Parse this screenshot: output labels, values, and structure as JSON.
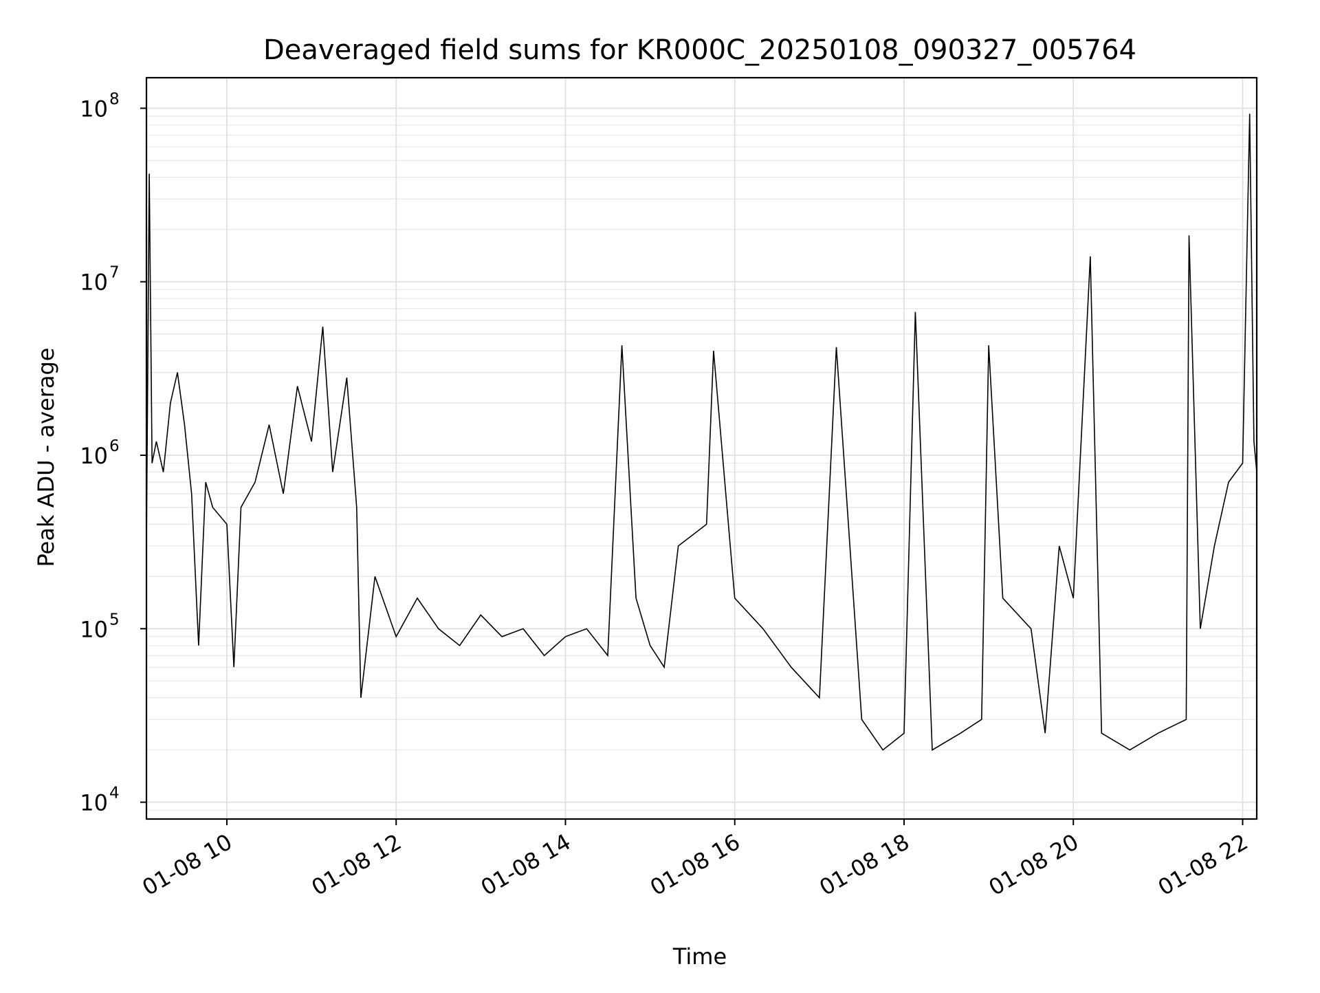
{
  "chart_data": {
    "type": "line",
    "title": "Deaveraged field sums for KR000C_20250108_090327_005764",
    "xlabel": "Time",
    "ylabel": "Peak ADU - average",
    "yscale": "log",
    "ylim": [
      8000,
      150000000
    ],
    "xlim": [
      "2025-01-08 09:03",
      "2025-01-08 22:10"
    ],
    "grid": true,
    "line_color": "#000000",
    "x_ticks": [
      {
        "value": "2025-01-08 10:00",
        "label": "01-08 10"
      },
      {
        "value": "2025-01-08 12:00",
        "label": "01-08 12"
      },
      {
        "value": "2025-01-08 14:00",
        "label": "01-08 14"
      },
      {
        "value": "2025-01-08 16:00",
        "label": "01-08 16"
      },
      {
        "value": "2025-01-08 18:00",
        "label": "01-08 18"
      },
      {
        "value": "2025-01-08 20:00",
        "label": "01-08 20"
      },
      {
        "value": "2025-01-08 22:00",
        "label": "01-08 22"
      }
    ],
    "y_ticks": [
      {
        "value": 10000,
        "base": "10",
        "exp": "4"
      },
      {
        "value": 100000,
        "base": "10",
        "exp": "5"
      },
      {
        "value": 1000000,
        "base": "10",
        "exp": "6"
      },
      {
        "value": 10000000,
        "base": "10",
        "exp": "7"
      },
      {
        "value": 100000000,
        "base": "10",
        "exp": "8"
      }
    ],
    "series": [
      {
        "points": [
          [
            "2025-01-08 09:03",
            300000
          ],
          [
            "2025-01-08 09:05",
            42000000
          ],
          [
            "2025-01-08 09:07",
            900000
          ],
          [
            "2025-01-08 09:10",
            1200000
          ],
          [
            "2025-01-08 09:15",
            800000
          ],
          [
            "2025-01-08 09:20",
            2000000
          ],
          [
            "2025-01-08 09:25",
            3000000
          ],
          [
            "2025-01-08 09:30",
            1500000
          ],
          [
            "2025-01-08 09:35",
            600000
          ],
          [
            "2025-01-08 09:40",
            80000
          ],
          [
            "2025-01-08 09:45",
            700000
          ],
          [
            "2025-01-08 09:50",
            500000
          ],
          [
            "2025-01-08 10:00",
            400000
          ],
          [
            "2025-01-08 10:05",
            60000
          ],
          [
            "2025-01-08 10:10",
            500000
          ],
          [
            "2025-01-08 10:20",
            700000
          ],
          [
            "2025-01-08 10:30",
            1500000
          ],
          [
            "2025-01-08 10:40",
            600000
          ],
          [
            "2025-01-08 10:50",
            2500000
          ],
          [
            "2025-01-08 11:00",
            1200000
          ],
          [
            "2025-01-08 11:08",
            5500000
          ],
          [
            "2025-01-08 11:15",
            800000
          ],
          [
            "2025-01-08 11:25",
            2800000
          ],
          [
            "2025-01-08 11:32",
            500000
          ],
          [
            "2025-01-08 11:35",
            40000
          ],
          [
            "2025-01-08 11:45",
            200000
          ],
          [
            "2025-01-08 12:00",
            90000
          ],
          [
            "2025-01-08 12:15",
            150000
          ],
          [
            "2025-01-08 12:30",
            100000
          ],
          [
            "2025-01-08 12:45",
            80000
          ],
          [
            "2025-01-08 13:00",
            120000
          ],
          [
            "2025-01-08 13:15",
            90000
          ],
          [
            "2025-01-08 13:30",
            100000
          ],
          [
            "2025-01-08 13:45",
            70000
          ],
          [
            "2025-01-08 14:00",
            90000
          ],
          [
            "2025-01-08 14:15",
            100000
          ],
          [
            "2025-01-08 14:30",
            70000
          ],
          [
            "2025-01-08 14:40",
            4300000
          ],
          [
            "2025-01-08 14:50",
            150000
          ],
          [
            "2025-01-08 15:00",
            80000
          ],
          [
            "2025-01-08 15:10",
            60000
          ],
          [
            "2025-01-08 15:20",
            300000
          ],
          [
            "2025-01-08 15:40",
            400000
          ],
          [
            "2025-01-08 15:45",
            4000000
          ],
          [
            "2025-01-08 16:00",
            150000
          ],
          [
            "2025-01-08 16:20",
            100000
          ],
          [
            "2025-01-08 16:40",
            60000
          ],
          [
            "2025-01-08 17:00",
            40000
          ],
          [
            "2025-01-08 17:12",
            4200000
          ],
          [
            "2025-01-08 17:30",
            30000
          ],
          [
            "2025-01-08 17:45",
            20000
          ],
          [
            "2025-01-08 18:00",
            25000
          ],
          [
            "2025-01-08 18:08",
            6700000
          ],
          [
            "2025-01-08 18:20",
            20000
          ],
          [
            "2025-01-08 18:40",
            25000
          ],
          [
            "2025-01-08 18:55",
            30000
          ],
          [
            "2025-01-08 19:00",
            4300000
          ],
          [
            "2025-01-08 19:10",
            150000
          ],
          [
            "2025-01-08 19:30",
            100000
          ],
          [
            "2025-01-08 19:40",
            25000
          ],
          [
            "2025-01-08 19:50",
            300000
          ],
          [
            "2025-01-08 20:00",
            150000
          ],
          [
            "2025-01-08 20:12",
            14000000
          ],
          [
            "2025-01-08 20:20",
            25000
          ],
          [
            "2025-01-08 20:40",
            20000
          ],
          [
            "2025-01-08 21:00",
            25000
          ],
          [
            "2025-01-08 21:20",
            30000
          ],
          [
            "2025-01-08 21:22",
            18500000
          ],
          [
            "2025-01-08 21:30",
            100000
          ],
          [
            "2025-01-08 21:40",
            300000
          ],
          [
            "2025-01-08 21:50",
            700000
          ],
          [
            "2025-01-08 22:00",
            900000
          ],
          [
            "2025-01-08 22:05",
            93000000
          ],
          [
            "2025-01-08 22:08",
            1200000
          ],
          [
            "2025-01-08 22:10",
            800000
          ]
        ]
      }
    ]
  }
}
